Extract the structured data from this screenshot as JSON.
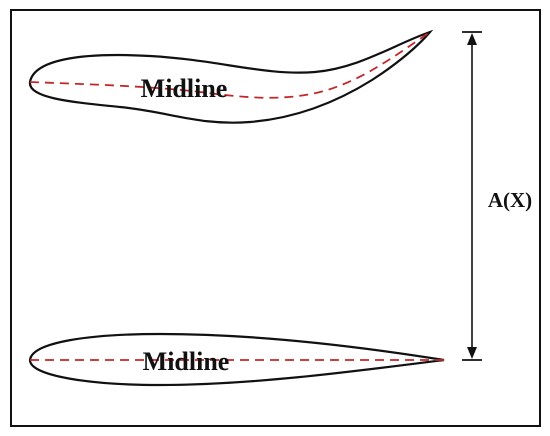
{
  "diagram": {
    "labels": {
      "upper_midline": "Midline",
      "lower_midline": "Midline",
      "amplitude": "A(X)"
    },
    "colors": {
      "outline": "#111111",
      "midline": "#c0282a",
      "frame": "#111111",
      "arrow": "#111111",
      "background": "#ffffff"
    },
    "elements": {
      "upper_profile": "undulating fish body outline (deformed)",
      "lower_profile": "straight fish body outline (undeformed)",
      "amplitude_arrow": "double-headed vertical arrow"
    }
  }
}
